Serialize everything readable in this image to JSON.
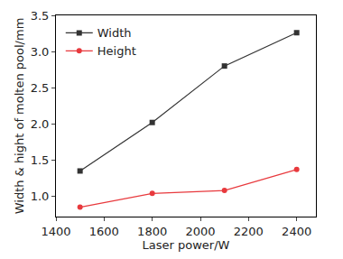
{
  "chart_data": {
    "type": "line",
    "x_label": "Laser power/W",
    "y_label": "Width & hight of molten pool/mm",
    "x": [
      1500,
      1800,
      2100,
      2400
    ],
    "series": [
      {
        "name": "Width",
        "color": "#333333",
        "marker": "square",
        "values": [
          1.35,
          2.02,
          2.8,
          3.26
        ]
      },
      {
        "name": "Height",
        "color": "#e8393d",
        "marker": "circle",
        "values": [
          0.85,
          1.04,
          1.08,
          1.37
        ]
      }
    ],
    "xlim": [
      1400,
      2480
    ],
    "xticks": [
      1400,
      1600,
      1800,
      2000,
      2200,
      2400
    ],
    "ylim": [
      0.72,
      3.5
    ],
    "yticks": [
      {
        "value": 1.0,
        "label": "1.0"
      },
      {
        "value": 1.5,
        "label": "1.5"
      },
      {
        "value": 2.0,
        "label": "2.0"
      },
      {
        "value": 2.5,
        "label": "2.5"
      },
      {
        "value": 3.0,
        "label": "3.0"
      },
      {
        "value": 3.5,
        "label": "3.5"
      }
    ],
    "grid": false,
    "legend": "top-left"
  }
}
